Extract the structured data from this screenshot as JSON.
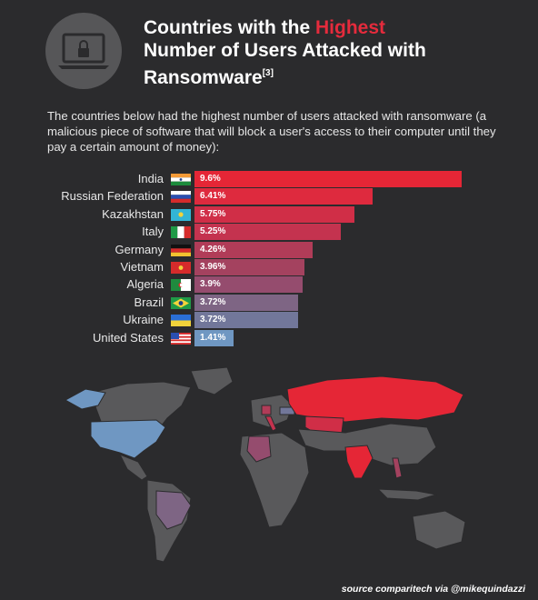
{
  "header": {
    "title_line1_prefix": "Countries with the ",
    "title_line1_highlight": "Highest",
    "title_line2": "Number of Users Attacked with",
    "title_line3": "Ransomware",
    "title_ref": "[3]",
    "icon": "laptop-lock-icon"
  },
  "description": "The countries below had the highest number of users attacked with ransomware (a malicious piece of software that will block a user's access to their computer until they pay a certain amount of money):",
  "chart_data": {
    "type": "bar",
    "orientation": "horizontal",
    "categories": [
      "India",
      "Russian Federation",
      "Kazakhstan",
      "Italy",
      "Germany",
      "Vietnam",
      "Algeria",
      "Brazil",
      "Ukraine",
      "United States"
    ],
    "values": [
      9.6,
      6.41,
      5.75,
      5.25,
      4.26,
      3.96,
      3.9,
      3.72,
      3.72,
      1.41
    ],
    "labels": [
      "9.6%",
      "6.41%",
      "5.75%",
      "5.25%",
      "4.26%",
      "3.96%",
      "3.9%",
      "3.72%",
      "3.72%",
      "1.41%"
    ],
    "unit": "%",
    "colors": [
      "#e52636",
      "#de2a3e",
      "#d02e47",
      "#c4334f",
      "#b13c58",
      "#a4425f",
      "#954c6e",
      "#7e6584",
      "#72779a",
      "#6f97c2"
    ],
    "grid": false,
    "legend": "none"
  },
  "map": {
    "highlight_colors": {
      "top": "#e52636",
      "mid": "#8e6b90",
      "low": "#7a8fb8"
    }
  },
  "source": "source comparitech via @mikequindazzi"
}
